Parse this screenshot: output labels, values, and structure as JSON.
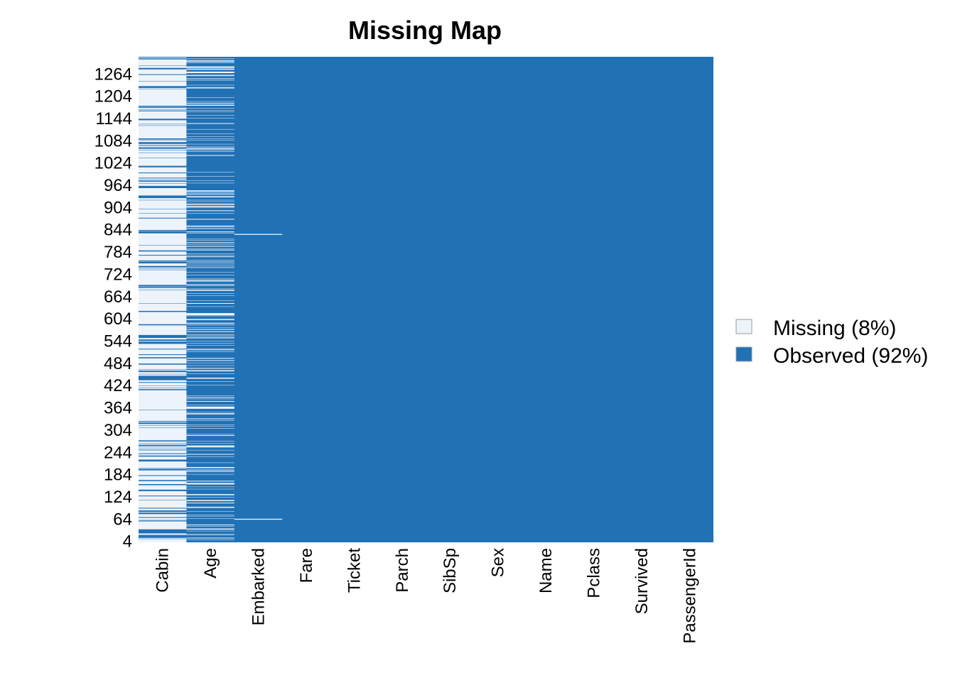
{
  "chart_data": {
    "type": "heatmap",
    "title": "Missing Map",
    "xlabel": "",
    "ylabel": "",
    "colors": {
      "missing": "#EDF3FB",
      "observed": "#2171B5"
    },
    "columns": [
      "Cabin",
      "Age",
      "Embarked",
      "Fare",
      "Ticket",
      "Parch",
      "SibSp",
      "Sex",
      "Name",
      "Pclass",
      "Survived",
      "PassengerId"
    ],
    "y_tick_labels": [
      "4",
      "64",
      "124",
      "184",
      "244",
      "304",
      "364",
      "424",
      "484",
      "544",
      "604",
      "664",
      "724",
      "784",
      "844",
      "904",
      "964",
      "1024",
      "1084",
      "1144",
      "1204",
      "1264"
    ],
    "row_count": 1309,
    "legend": {
      "position": "right",
      "items": [
        {
          "label": "Missing (8%)",
          "color": "#EDF3FB"
        },
        {
          "label": "Observed (92%)",
          "color": "#2171B5"
        }
      ]
    },
    "missing_pattern": {
      "Cabin": {
        "missing_fraction": 0.775
      },
      "Age": {
        "missing_fraction": 0.2
      },
      "Embarked": {
        "missing_rows": [
          62,
          830
        ]
      }
    }
  }
}
